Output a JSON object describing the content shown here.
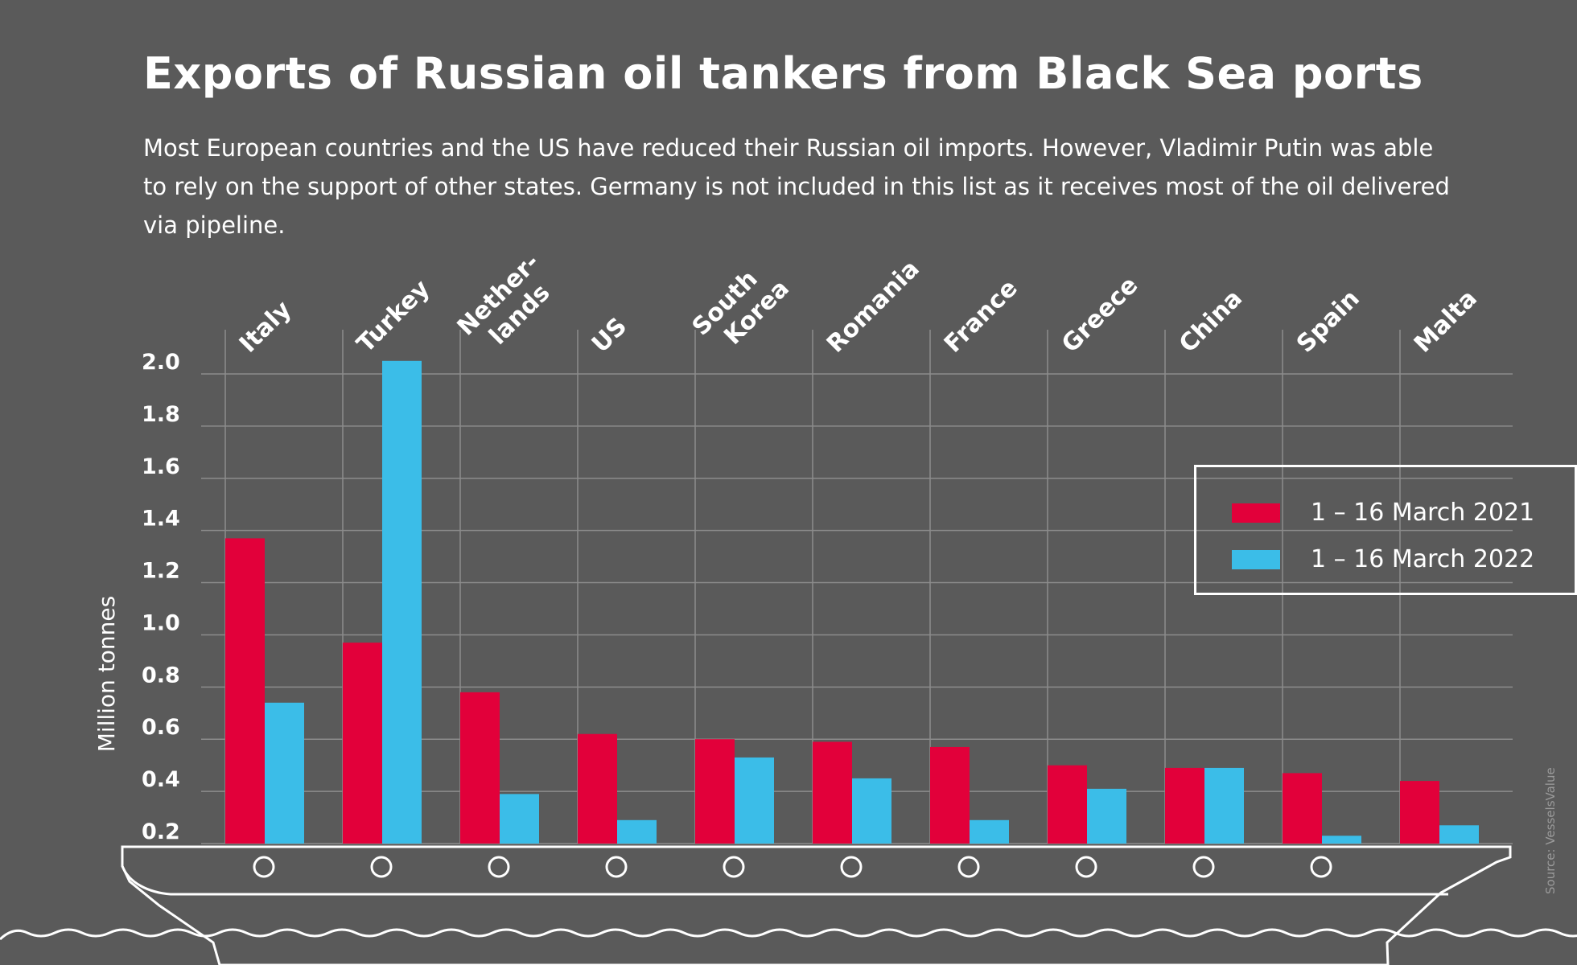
{
  "title": "Exports of Russian oil tankers from Black Sea ports",
  "subtitle": "Most European countries and the US have reduced their Russian oil imports. However, Vladimir Putin was able to rely on the support of other states. Germany is not included in this list as it receives most of the oil delivered via pipeline.",
  "source": "Source: VesselsValue",
  "colors": {
    "background": "#5a5a5a",
    "series_2021": "#e2003a",
    "series_2022": "#3bbde8",
    "grid": "#8c8c8c"
  },
  "chart_data": {
    "type": "bar",
    "categories": [
      "Italy",
      "Turkey",
      "Nether-\nlands",
      "US",
      "South\nKorea",
      "Romania",
      "France",
      "Greece",
      "China",
      "Spain",
      "Malta"
    ],
    "series": [
      {
        "name": "1 – 16 March 2021",
        "values": [
          1.37,
          0.97,
          0.78,
          0.62,
          0.6,
          0.59,
          0.57,
          0.5,
          0.49,
          0.47,
          0.44
        ]
      },
      {
        "name": "1 – 16 March 2022",
        "values": [
          0.74,
          2.05,
          0.39,
          0.29,
          0.53,
          0.45,
          0.29,
          0.41,
          0.49,
          0.23,
          0.27
        ]
      }
    ],
    "ylabel": "Million tonnes",
    "yticks": [
      "0.2",
      "0.4",
      "0.6",
      "0.8",
      "1.0",
      "1.2",
      "1.4",
      "1.6",
      "1.8",
      "2.0"
    ],
    "ylim": [
      0.2,
      2.0
    ],
    "grid": true,
    "legend_position": "right"
  }
}
